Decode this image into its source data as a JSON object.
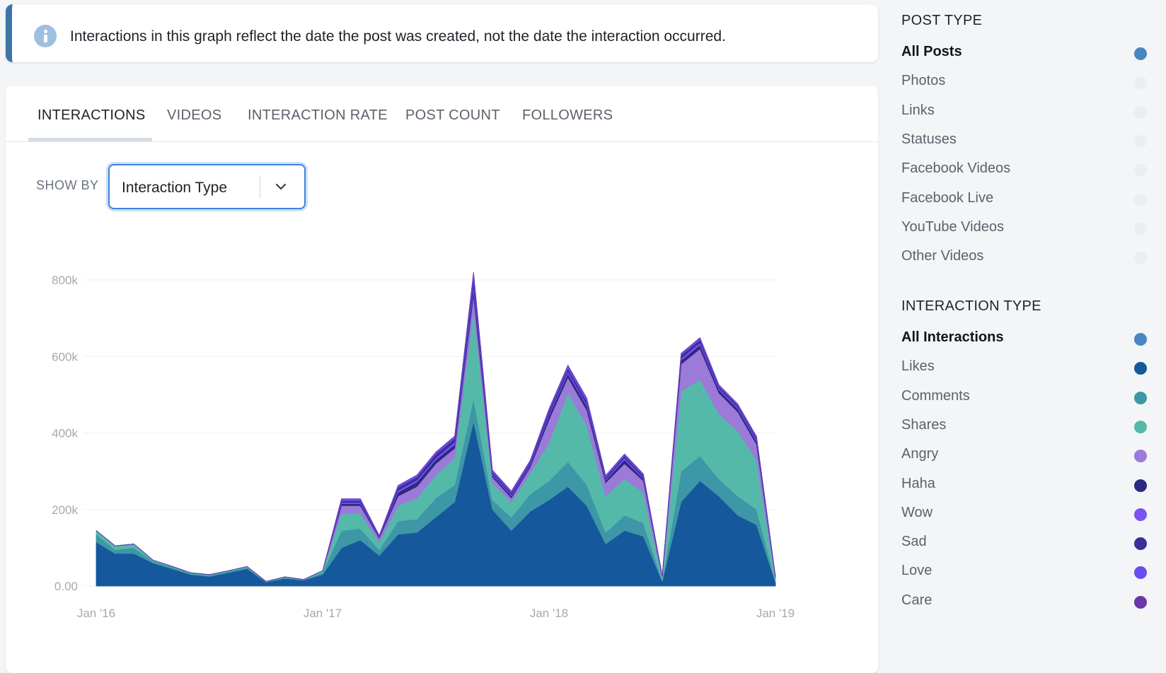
{
  "notice": {
    "text": "Interactions in this graph reflect the date the post was created, not the date the interaction occurred."
  },
  "tabs": [
    {
      "label": "INTERACTIONS",
      "active": true
    },
    {
      "label": "VIDEOS",
      "active": false
    },
    {
      "label": "INTERACTION RATE",
      "active": false
    },
    {
      "label": "POST COUNT",
      "active": false
    },
    {
      "label": "FOLLOWERS",
      "active": false
    }
  ],
  "show_by": {
    "label": "SHOW BY",
    "selected": "Interaction Type"
  },
  "sidebar": {
    "post_type": {
      "title": "POST TYPE",
      "items": [
        {
          "label": "All Posts",
          "selected": true,
          "color": "#4a86c0"
        },
        {
          "label": "Photos",
          "selected": false,
          "color": "#e9eef5"
        },
        {
          "label": "Links",
          "selected": false,
          "color": "#e9eef5"
        },
        {
          "label": "Statuses",
          "selected": false,
          "color": "#e9eef5"
        },
        {
          "label": "Facebook Videos",
          "selected": false,
          "color": "#e9eef5"
        },
        {
          "label": "Facebook Live",
          "selected": false,
          "color": "#e9eef5"
        },
        {
          "label": "YouTube Videos",
          "selected": false,
          "color": "#e9eef5"
        },
        {
          "label": "Other Videos",
          "selected": false,
          "color": "#e9eef5"
        }
      ]
    },
    "interaction_type": {
      "title": "INTERACTION TYPE",
      "items": [
        {
          "label": "All Interactions",
          "selected": true,
          "color": "#4a86c0"
        },
        {
          "label": "Likes",
          "selected": false,
          "color": "#15589b"
        },
        {
          "label": "Comments",
          "selected": false,
          "color": "#3d97a7"
        },
        {
          "label": "Shares",
          "selected": false,
          "color": "#55b9aa"
        },
        {
          "label": "Angry",
          "selected": false,
          "color": "#9b7ad8"
        },
        {
          "label": "Haha",
          "selected": false,
          "color": "#2a2a80"
        },
        {
          "label": "Wow",
          "selected": false,
          "color": "#7c52f0"
        },
        {
          "label": "Sad",
          "selected": false,
          "color": "#3d2f9a"
        },
        {
          "label": "Love",
          "selected": false,
          "color": "#6b4cf0"
        },
        {
          "label": "Care",
          "selected": false,
          "color": "#6a36a8"
        }
      ]
    }
  },
  "chart_data": {
    "type": "area",
    "stacked": true,
    "x": [
      "2016-01",
      "2016-02",
      "2016-03",
      "2016-04",
      "2016-05",
      "2016-06",
      "2016-07",
      "2016-08",
      "2016-09",
      "2016-10",
      "2016-11",
      "2016-12",
      "2017-01",
      "2017-02",
      "2017-03",
      "2017-04",
      "2017-05",
      "2017-06",
      "2017-07",
      "2017-08",
      "2017-09",
      "2017-10",
      "2017-11",
      "2017-12",
      "2018-01",
      "2018-02",
      "2018-03",
      "2018-04",
      "2018-05",
      "2018-06",
      "2018-07",
      "2018-08",
      "2018-09",
      "2018-10",
      "2018-11",
      "2018-12",
      "2019-01"
    ],
    "x_ticks": [
      "Jan '16",
      "Jan '17",
      "Jan '18",
      "Jan '19"
    ],
    "y_ticks": [
      "0.00",
      "200k",
      "400k",
      "600k",
      "800k"
    ],
    "ylim": [
      0,
      800000
    ],
    "grid": true,
    "series": [
      {
        "name": "Likes",
        "color": "#15589b",
        "values": [
          115000,
          85000,
          85000,
          60000,
          45000,
          30000,
          25000,
          35000,
          45000,
          10000,
          20000,
          15000,
          30000,
          100000,
          120000,
          80000,
          135000,
          140000,
          180000,
          220000,
          430000,
          200000,
          145000,
          195000,
          225000,
          260000,
          210000,
          110000,
          145000,
          130000,
          12000,
          220000,
          275000,
          235000,
          185000,
          160000,
          10000
        ]
      },
      {
        "name": "Comments",
        "color": "#3d97a7",
        "values": [
          20000,
          10000,
          15000,
          5000,
          5000,
          3000,
          3000,
          3000,
          3000,
          1000,
          2000,
          1000,
          5000,
          45000,
          30000,
          15000,
          35000,
          35000,
          50000,
          45000,
          60000,
          25000,
          35000,
          45000,
          50000,
          65000,
          55000,
          30000,
          40000,
          35000,
          3000,
          80000,
          65000,
          45000,
          50000,
          40000,
          3000
        ]
      },
      {
        "name": "Shares",
        "color": "#55b9aa",
        "values": [
          10000,
          10000,
          10000,
          3000,
          2000,
          2000,
          2000,
          2000,
          3000,
          1000,
          2000,
          1000,
          5000,
          45000,
          40000,
          20000,
          40000,
          55000,
          60000,
          70000,
          230000,
          45000,
          40000,
          55000,
          100000,
          180000,
          155000,
          95000,
          95000,
          80000,
          5000,
          210000,
          200000,
          170000,
          170000,
          130000,
          5000
        ]
      },
      {
        "name": "Angry",
        "color": "#9b7ad8",
        "values": [
          0,
          0,
          0,
          0,
          0,
          0,
          0,
          0,
          0,
          0,
          0,
          0,
          0,
          20000,
          20000,
          10000,
          25000,
          30000,
          30000,
          25000,
          40000,
          15000,
          10000,
          15000,
          60000,
          40000,
          40000,
          35000,
          40000,
          30000,
          5000,
          70000,
          80000,
          55000,
          50000,
          40000,
          5000
        ]
      },
      {
        "name": "Haha",
        "color": "#2a2a80",
        "values": [
          0,
          0,
          0,
          0,
          0,
          0,
          0,
          0,
          0,
          0,
          0,
          0,
          0,
          5000,
          5000,
          2000,
          10000,
          12000,
          10000,
          10000,
          15000,
          5000,
          5000,
          5000,
          10000,
          10000,
          10000,
          6000,
          10000,
          5000,
          1000,
          10000,
          10000,
          8000,
          8000,
          8000,
          1000
        ]
      },
      {
        "name": "Wow",
        "color": "#7c52f0",
        "values": [
          0,
          0,
          0,
          0,
          0,
          0,
          0,
          0,
          0,
          0,
          0,
          0,
          0,
          3000,
          3000,
          1000,
          5000,
          5000,
          5000,
          6000,
          10000,
          3000,
          3000,
          3000,
          5000,
          6000,
          5000,
          3000,
          5000,
          3000,
          500,
          5000,
          6000,
          4000,
          4000,
          4000,
          500
        ]
      },
      {
        "name": "Sad",
        "color": "#3d2f9a",
        "values": [
          0,
          0,
          0,
          0,
          0,
          0,
          0,
          0,
          0,
          0,
          0,
          0,
          0,
          5000,
          5000,
          2000,
          8000,
          8000,
          10000,
          10000,
          20000,
          5000,
          5000,
          5000,
          8000,
          8000,
          8000,
          5000,
          5000,
          5000,
          500,
          8000,
          8000,
          5000,
          5000,
          5000,
          500
        ]
      },
      {
        "name": "Love",
        "color": "#6b4cf0",
        "values": [
          0,
          0,
          0,
          0,
          0,
          0,
          0,
          0,
          0,
          0,
          0,
          0,
          0,
          5000,
          5000,
          2000,
          5000,
          5000,
          5000,
          6000,
          15000,
          5000,
          5000,
          5000,
          5000,
          8000,
          8000,
          5000,
          5000,
          5000,
          500,
          5000,
          5000,
          4000,
          4000,
          4000,
          500
        ]
      },
      {
        "name": "Care",
        "color": "#6a36a8",
        "values": [
          0,
          0,
          0,
          0,
          0,
          0,
          0,
          0,
          0,
          0,
          0,
          0,
          0,
          0,
          0,
          0,
          0,
          0,
          0,
          0,
          0,
          0,
          0,
          0,
          0,
          0,
          0,
          0,
          0,
          0,
          0,
          0,
          0,
          0,
          0,
          0,
          0
        ]
      }
    ]
  }
}
